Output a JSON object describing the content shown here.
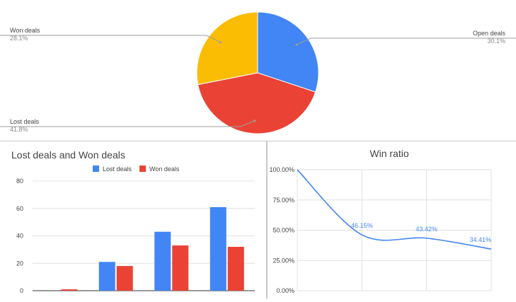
{
  "chart_data": [
    {
      "type": "pie",
      "slices": [
        {
          "name": "Open deals",
          "pct_label": "30.1%",
          "value": 30.1,
          "color": "#4285f4"
        },
        {
          "name": "Lost deals",
          "pct_label": "41.8%",
          "value": 41.8,
          "color": "#ea4335"
        },
        {
          "name": "Won deals",
          "pct_label": "28.1%",
          "value": 28.1,
          "color": "#fbbc04"
        }
      ]
    },
    {
      "type": "bar",
      "title": "Lost deals and Won deals",
      "categories": [
        "",
        "",
        "",
        ""
      ],
      "series": [
        {
          "name": "Lost deals",
          "values": [
            0,
            21,
            43,
            61
          ],
          "color": "#4285f4"
        },
        {
          "name": "Won deals",
          "values": [
            1,
            18,
            33,
            32
          ],
          "color": "#ea4335"
        }
      ],
      "yticks": [
        "0",
        "20",
        "40",
        "60",
        "80"
      ],
      "ylim": [
        0,
        80
      ],
      "legend": "top"
    },
    {
      "type": "line",
      "title": "Win ratio",
      "x": [
        0,
        1,
        2,
        3
      ],
      "values": [
        100,
        46.15,
        43.42,
        34.41
      ],
      "point_labels": [
        "",
        "46.15%",
        "43.42%",
        "34.41%"
      ],
      "yticks": [
        "0.00%",
        "25.00%",
        "50.00%",
        "75.00%",
        "100.00%"
      ],
      "ylim": [
        0,
        100
      ],
      "color": "#4285f4"
    }
  ]
}
